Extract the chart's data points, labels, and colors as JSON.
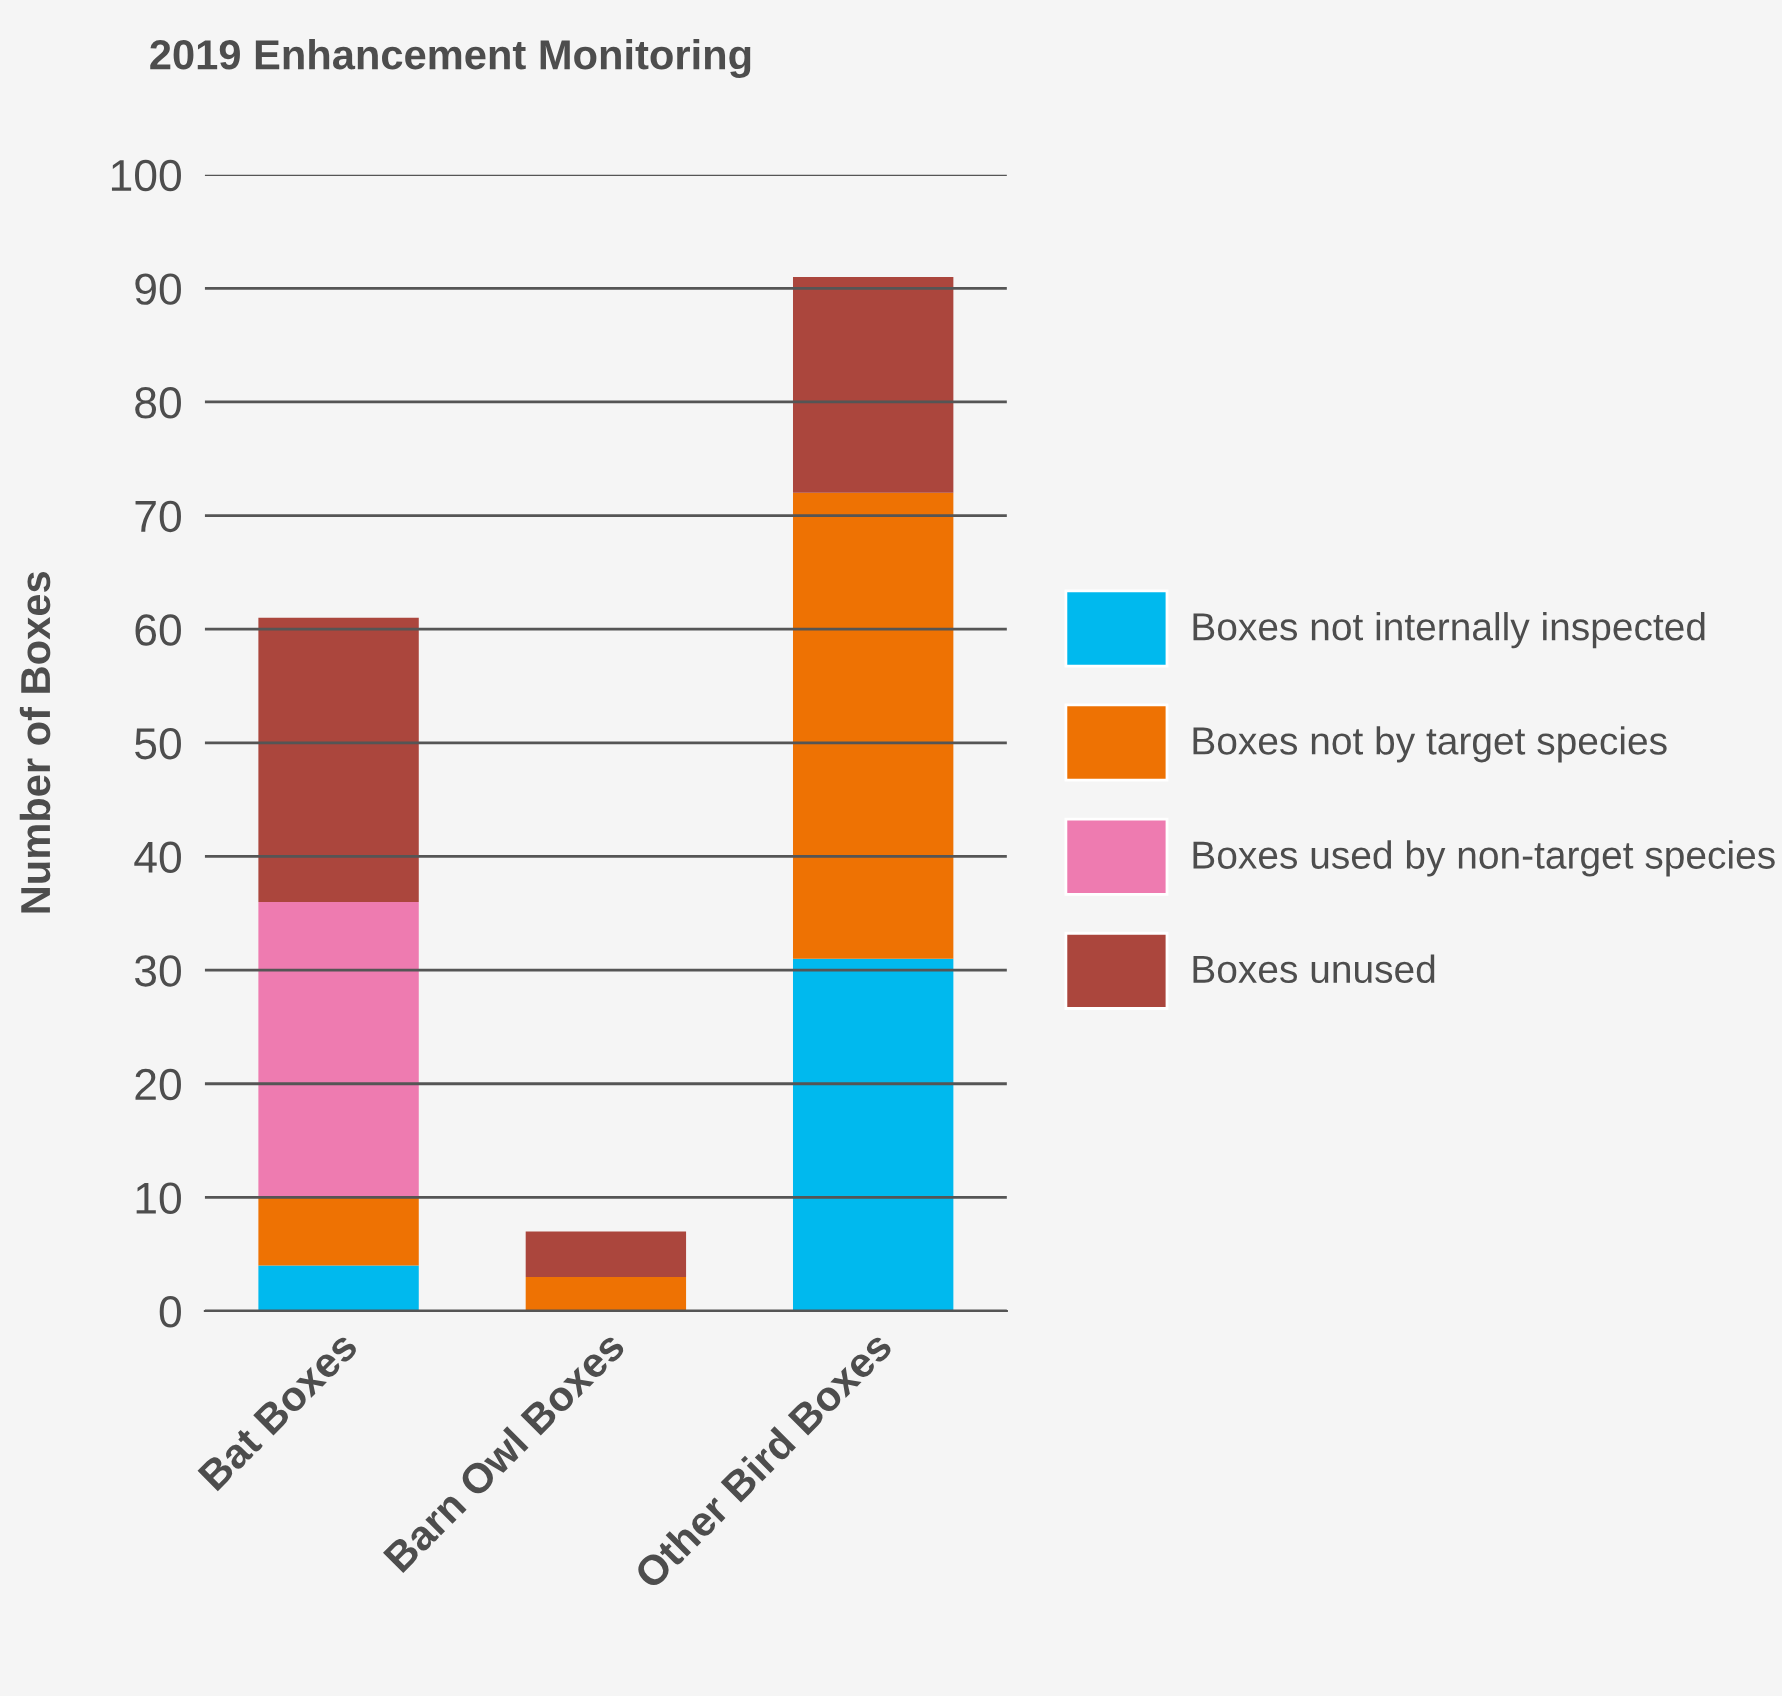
{
  "chart_data": {
    "type": "bar",
    "stacked": true,
    "title": "2019 Enhancement Monitoring",
    "ylabel": "Number of Boxes",
    "categories": [
      "Bat Boxes",
      "Barn Owl Boxes",
      "Other Bird Boxes"
    ],
    "series": [
      {
        "name": "Boxes not internally inspected",
        "color": "#00b9ee",
        "values": [
          4,
          0,
          31
        ]
      },
      {
        "name": "Boxes not by target species",
        "color": "#ee7203",
        "values": [
          6,
          3,
          41
        ]
      },
      {
        "name": "Boxes used by non-target species",
        "color": "#ee7bb0",
        "values": [
          26,
          0,
          0
        ]
      },
      {
        "name": "Boxes unused",
        "color": "#ab463d",
        "values": [
          25,
          4,
          19
        ]
      }
    ],
    "ylim": [
      0,
      100
    ],
    "yticks": [
      0,
      10,
      20,
      30,
      40,
      50,
      60,
      70,
      80,
      90,
      100
    ],
    "grid": "y",
    "legend": "right"
  }
}
